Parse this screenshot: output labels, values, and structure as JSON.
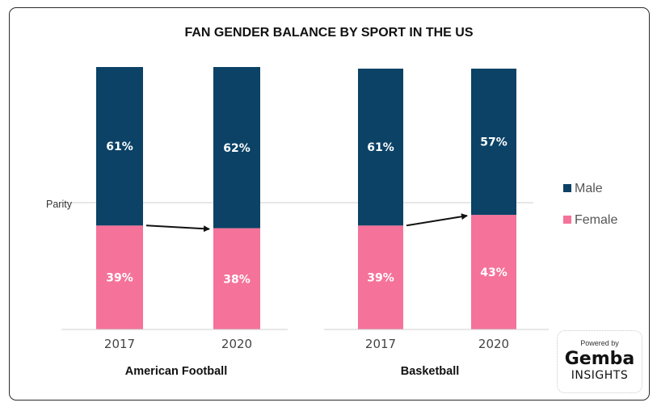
{
  "chart_data": {
    "type": "bar",
    "stacked": true,
    "title": "FAN GENDER BALANCE BY SPORT IN THE US",
    "groups": [
      {
        "name": "American Football",
        "categories": [
          "2017",
          "2020"
        ],
        "series": [
          {
            "name": "Female",
            "values": [
              39,
              38
            ],
            "labels": [
              "39%",
              "38%"
            ]
          },
          {
            "name": "Male",
            "values": [
              61,
              62
            ],
            "labels": [
              "61%",
              "62%"
            ]
          }
        ]
      },
      {
        "name": "Basketball",
        "categories": [
          "2017",
          "2020"
        ],
        "series": [
          {
            "name": "Female",
            "values": [
              39,
              43
            ],
            "labels": [
              "39%",
              "43%"
            ]
          },
          {
            "name": "Male",
            "values": [
              61,
              57
            ],
            "labels": [
              "61%",
              "57%"
            ]
          }
        ]
      }
    ],
    "reference_line": {
      "label": "Parity",
      "value": 50
    },
    "ylim": [
      0,
      100
    ],
    "legend": {
      "placement": "right",
      "entries": [
        "Male",
        "Female"
      ]
    },
    "colors": {
      "Male": "#0b4266",
      "Female": "#f5729a"
    },
    "annotations": "arrows between Female tops"
  },
  "logo": {
    "powered": "Powered by",
    "brand": "Gemba",
    "sub": "INSIGHTS"
  }
}
